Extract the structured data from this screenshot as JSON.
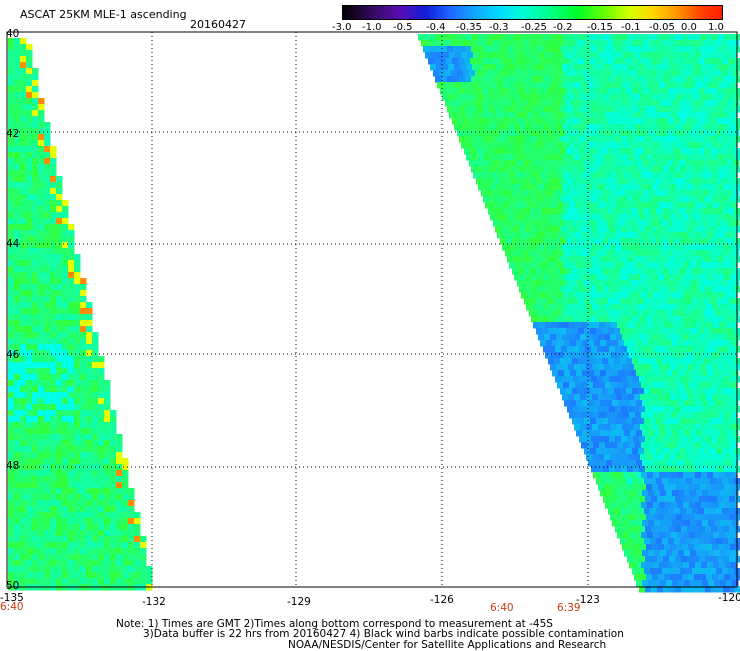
{
  "header": {
    "product_title": "ASCAT 25KM MLE-1 ascending",
    "date": "20160427"
  },
  "colorbar": {
    "labels": [
      "-3.0",
      "-1.0",
      "-0.5",
      "-0.4",
      "-0.35",
      "-0.3",
      "-0.25",
      "-0.2",
      "-0.15",
      "-0.1",
      "-0.05",
      "0.0",
      "1.0"
    ]
  },
  "axes": {
    "y_labels": [
      "40",
      "42",
      "44",
      "46",
      "48",
      "50"
    ],
    "x_labels": [
      "-135",
      "-132",
      "-129",
      "-126",
      "-123",
      "-120"
    ]
  },
  "time_labels": {
    "left_swath": "6:40",
    "right_swath_a": "6:40",
    "right_swath_b": "6:39"
  },
  "notes": {
    "line1": "Note: 1) Times are GMT 2)Times along bottom correspond to measurement at -45S",
    "line2": "3)Data buffer is 22 hrs from 20160427 4) Black wind barbs indicate possible contamination",
    "line3": "NOAA/NESDIS/Center for Satellite Applications and Research"
  },
  "palette": {
    "green": "#32ff3c",
    "cyan": "#00ffe6",
    "blue": "#1e78ff",
    "yellow": "#e6ff00",
    "orange": "#ff8c00"
  },
  "map": {
    "lon_range": [
      -135,
      -120
    ],
    "lat_range": [
      40,
      50
    ],
    "grid": "dotted"
  }
}
